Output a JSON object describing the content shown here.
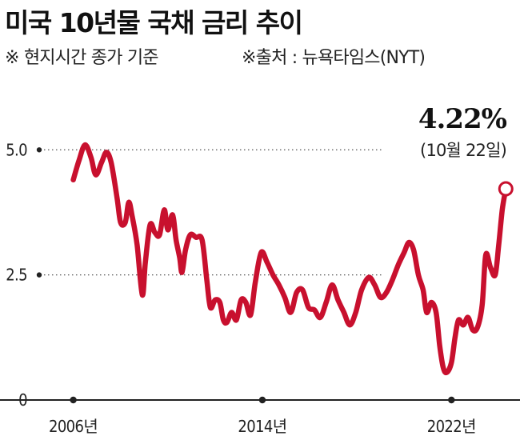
{
  "header": {
    "title": "미국 10년물 국채 금리 추이",
    "subtitle": "※ 현지시간 종가 기준",
    "source": "※출처 : 뉴욕타임스(NYT)"
  },
  "colors": {
    "line": "#c8102e",
    "axis": "#222222",
    "grid": "#555555"
  },
  "chart_data": {
    "type": "line",
    "title": "미국 10년물 국채 금리 추이",
    "xlabel": "",
    "ylabel": "",
    "xlim": [
      2002.9,
      2024.9
    ],
    "ylim": [
      0,
      5.5
    ],
    "x_ticks": [
      {
        "value": 2006,
        "label": "2006년"
      },
      {
        "value": 2014,
        "label": "2014년"
      },
      {
        "value": 2022,
        "label": "2022년"
      }
    ],
    "y_ticks": [
      {
        "value": 5.0,
        "label": "5.0"
      },
      {
        "value": 2.5,
        "label": "2.5"
      },
      {
        "value": 0,
        "label": "0"
      }
    ],
    "grid": "horizontal dotted at 5.0 and 2.5",
    "series": [
      {
        "values": [
          [
            2006.0,
            4.4
          ],
          [
            2006.25,
            4.8
          ],
          [
            2006.5,
            5.1
          ],
          [
            2006.75,
            4.85
          ],
          [
            2006.95,
            4.5
          ],
          [
            2007.2,
            4.75
          ],
          [
            2007.4,
            4.95
          ],
          [
            2007.6,
            4.75
          ],
          [
            2007.85,
            4.05
          ],
          [
            2008.0,
            3.55
          ],
          [
            2008.2,
            3.55
          ],
          [
            2008.35,
            3.95
          ],
          [
            2008.5,
            3.65
          ],
          [
            2008.7,
            3.1
          ],
          [
            2008.92,
            2.1
          ],
          [
            2009.05,
            2.75
          ],
          [
            2009.25,
            3.5
          ],
          [
            2009.45,
            3.35
          ],
          [
            2009.65,
            3.3
          ],
          [
            2009.85,
            3.8
          ],
          [
            2010.0,
            3.4
          ],
          [
            2010.2,
            3.7
          ],
          [
            2010.35,
            3.2
          ],
          [
            2010.5,
            2.85
          ],
          [
            2010.6,
            2.55
          ],
          [
            2010.75,
            3.0
          ],
          [
            2010.95,
            3.3
          ],
          [
            2011.2,
            3.25
          ],
          [
            2011.45,
            3.2
          ],
          [
            2011.65,
            2.4
          ],
          [
            2011.8,
            1.85
          ],
          [
            2012.0,
            2.0
          ],
          [
            2012.2,
            1.95
          ],
          [
            2012.35,
            1.6
          ],
          [
            2012.5,
            1.55
          ],
          [
            2012.7,
            1.75
          ],
          [
            2012.9,
            1.6
          ],
          [
            2013.1,
            2.0
          ],
          [
            2013.3,
            1.95
          ],
          [
            2013.5,
            1.7
          ],
          [
            2013.7,
            2.35
          ],
          [
            2013.95,
            2.95
          ],
          [
            2014.2,
            2.75
          ],
          [
            2014.45,
            2.5
          ],
          [
            2014.7,
            2.3
          ],
          [
            2014.95,
            2.05
          ],
          [
            2015.2,
            1.75
          ],
          [
            2015.45,
            2.15
          ],
          [
            2015.7,
            2.2
          ],
          [
            2015.95,
            1.85
          ],
          [
            2016.2,
            1.8
          ],
          [
            2016.45,
            1.65
          ],
          [
            2016.7,
            1.95
          ],
          [
            2016.95,
            2.3
          ],
          [
            2017.2,
            2.0
          ],
          [
            2017.45,
            1.75
          ],
          [
            2017.7,
            1.5
          ],
          [
            2017.95,
            1.75
          ],
          [
            2018.2,
            2.2
          ],
          [
            2018.5,
            2.45
          ],
          [
            2018.75,
            2.3
          ],
          [
            2019.0,
            2.05
          ],
          [
            2019.25,
            2.15
          ],
          [
            2019.5,
            2.4
          ],
          [
            2019.75,
            2.7
          ],
          [
            2020.0,
            2.95
          ],
          [
            2020.2,
            3.15
          ],
          [
            2020.4,
            3.0
          ],
          [
            2020.6,
            2.5
          ],
          [
            2020.8,
            2.2
          ],
          [
            2020.95,
            1.75
          ],
          [
            2021.15,
            1.95
          ],
          [
            2021.35,
            1.75
          ],
          [
            2021.5,
            1.1
          ],
          [
            2021.65,
            0.65
          ],
          [
            2021.8,
            0.55
          ],
          [
            2022.0,
            0.75
          ],
          [
            2022.15,
            1.25
          ],
          [
            2022.3,
            1.6
          ],
          [
            2022.5,
            1.5
          ],
          [
            2022.7,
            1.65
          ],
          [
            2022.9,
            1.4
          ],
          [
            2023.1,
            1.45
          ],
          [
            2023.3,
            1.9
          ],
          [
            2023.45,
            2.9
          ],
          [
            2023.65,
            2.65
          ],
          [
            2023.85,
            2.5
          ],
          [
            2024.0,
            3.1
          ],
          [
            2024.15,
            3.8
          ],
          [
            2024.3,
            4.22
          ]
        ]
      }
    ],
    "annotations": [
      {
        "label": "4.22%",
        "sub": "(10월 22일)",
        "x": 2024.3,
        "y": 4.22
      }
    ]
  }
}
